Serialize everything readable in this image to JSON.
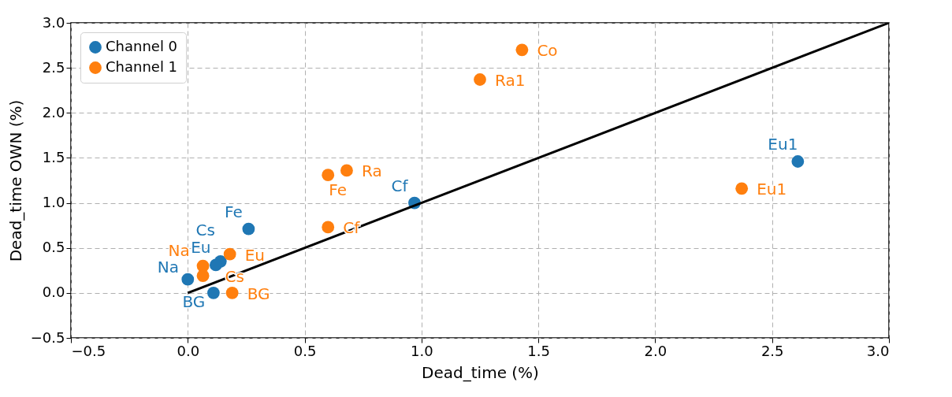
{
  "chart_data": {
    "type": "scatter",
    "xlabel": "Dead_time (%)",
    "ylabel": "Dead_time OWN (%)",
    "xlim": [
      -0.5,
      3.0
    ],
    "ylim": [
      -0.5,
      3.0
    ],
    "xticks": [
      {
        "value": -0.5,
        "label": "−0.5"
      },
      {
        "value": 0,
        "label": "0.0"
      },
      0.5,
      {
        "value": 1,
        "label": "1.0"
      },
      1.5,
      {
        "value": 2,
        "label": "2.0"
      },
      2.5,
      {
        "value": 3,
        "label": "3.0"
      }
    ],
    "yticks": [
      {
        "value": -0.5,
        "label": "−0.5"
      },
      {
        "value": 0,
        "label": "0.0"
      },
      0.5,
      {
        "value": 1,
        "label": "1.0"
      },
      1.5,
      {
        "value": 2,
        "label": "2.0"
      },
      2.5,
      {
        "value": 3,
        "label": "3.0"
      }
    ],
    "grid": true,
    "legend": "top left",
    "series": [
      {
        "name": "Channel 0",
        "color": "#1f77b4",
        "marker": "circle",
        "x": [
          0.11,
          0.0,
          0.14,
          0.12,
          0.26,
          0.97,
          2.61
        ],
        "values": [
          0.0,
          0.15,
          0.35,
          0.31,
          0.71,
          1.0,
          1.46
        ],
        "value_labels": [
          "BG",
          "Na",
          "Cs",
          "Eu",
          "Fe",
          "Cf",
          "Eu1"
        ]
      },
      {
        "name": "Channel 1",
        "color": "#ff7f0e",
        "marker": "circle",
        "x": [
          0.19,
          0.065,
          0.065,
          0.18,
          0.6,
          0.68,
          0.6,
          1.43,
          1.25,
          2.37
        ],
        "values": [
          0.0,
          0.3,
          0.19,
          0.43,
          1.31,
          1.36,
          0.73,
          2.7,
          2.37,
          1.16
        ],
        "value_labels": [
          "BG",
          "Na",
          "Cs",
          "Eu",
          "Fe",
          "Ra",
          "Cf",
          "Co",
          "Ra1",
          "Eu1"
        ]
      },
      {
        "type": "line",
        "color": "#000000",
        "x": [
          0,
          3
        ],
        "values": [
          0,
          3
        ],
        "line_style": "solid"
      }
    ]
  }
}
